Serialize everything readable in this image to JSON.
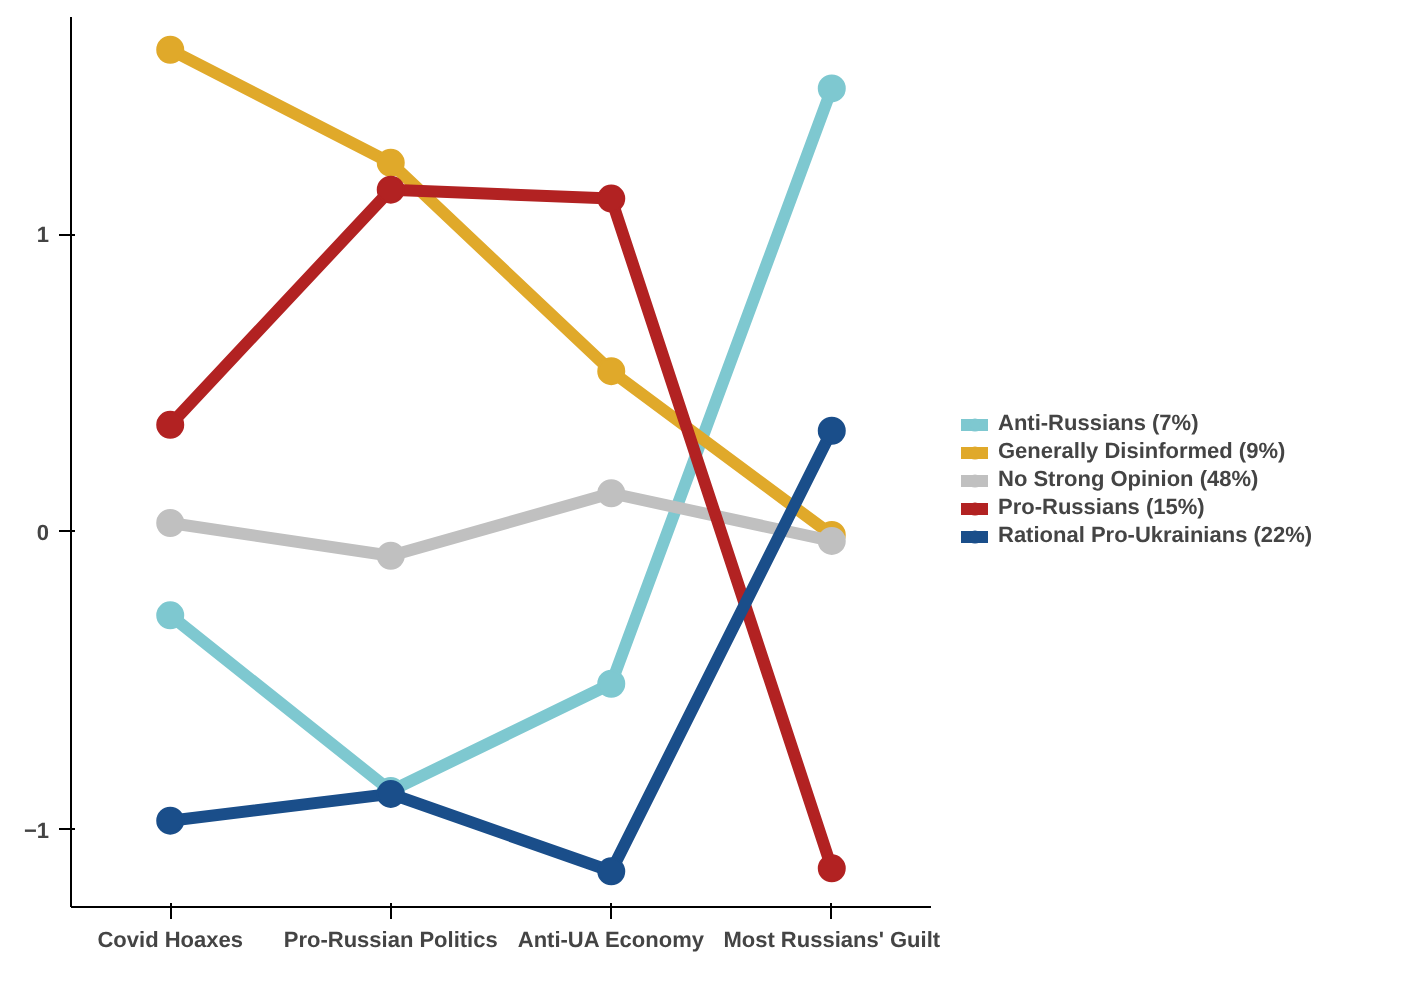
{
  "chart_data": {
    "type": "line",
    "categories": [
      "Covid Hoaxes",
      "Pro-Russian Politics",
      "Anti-UA Economy",
      "Most Russians' Guilt"
    ],
    "series": [
      {
        "name": "Anti-Russians (7%)",
        "color": "#7ec8d0",
        "values": [
          -0.28,
          -0.87,
          -0.51,
          1.49
        ]
      },
      {
        "name": "Generally Disinformed (9%)",
        "color": "#e0a92a",
        "values": [
          1.62,
          1.24,
          0.54,
          -0.01
        ]
      },
      {
        "name": "No Strong Opinion (48%)",
        "color": "#c0c0c0",
        "values": [
          0.03,
          -0.08,
          0.13,
          -0.03
        ]
      },
      {
        "name": "Pro-Russians (15%)",
        "color": "#b22222",
        "values": [
          0.36,
          1.15,
          1.12,
          -1.13
        ]
      },
      {
        "name": "Rational Pro-Ukrainians (22%)",
        "color": "#1a4e8a",
        "values": [
          -0.97,
          -0.88,
          -1.14,
          0.34
        ]
      }
    ],
    "ylim": [
      -1.26,
      1.73
    ],
    "yticks": [
      -1,
      0,
      1
    ],
    "grid": false,
    "legend": "right",
    "marker": "circle",
    "line_style": "solid"
  }
}
